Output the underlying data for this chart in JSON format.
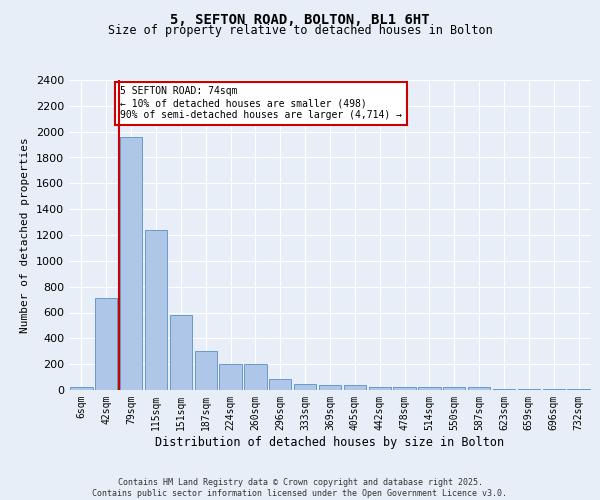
{
  "title_line1": "5, SEFTON ROAD, BOLTON, BL1 6HT",
  "title_line2": "Size of property relative to detached houses in Bolton",
  "xlabel": "Distribution of detached houses by size in Bolton",
  "ylabel": "Number of detached properties",
  "bar_labels": [
    "6sqm",
    "42sqm",
    "79sqm",
    "115sqm",
    "151sqm",
    "187sqm",
    "224sqm",
    "260sqm",
    "296sqm",
    "333sqm",
    "369sqm",
    "405sqm",
    "442sqm",
    "478sqm",
    "514sqm",
    "550sqm",
    "587sqm",
    "623sqm",
    "659sqm",
    "696sqm",
    "732sqm"
  ],
  "bar_values": [
    20,
    710,
    1960,
    1235,
    580,
    305,
    200,
    200,
    83,
    47,
    38,
    38,
    27,
    27,
    27,
    20,
    20,
    10,
    10,
    10,
    5
  ],
  "bar_color": "#aec6e8",
  "bar_edge_color": "#5a8fc2",
  "ylim": [
    0,
    2400
  ],
  "yticks": [
    0,
    200,
    400,
    600,
    800,
    1000,
    1200,
    1400,
    1600,
    1800,
    2000,
    2200,
    2400
  ],
  "vline_color": "#cc0000",
  "vline_x": 1.5,
  "annotation_text": "5 SEFTON ROAD: 74sqm\n← 10% of detached houses are smaller (498)\n90% of semi-detached houses are larger (4,714) →",
  "annotation_box_color": "#cc0000",
  "bg_color": "#e8eef7",
  "plot_bg_color": "#e8eef7",
  "grid_color": "#ffffff",
  "footer_line1": "Contains HM Land Registry data © Crown copyright and database right 2025.",
  "footer_line2": "Contains public sector information licensed under the Open Government Licence v3.0."
}
